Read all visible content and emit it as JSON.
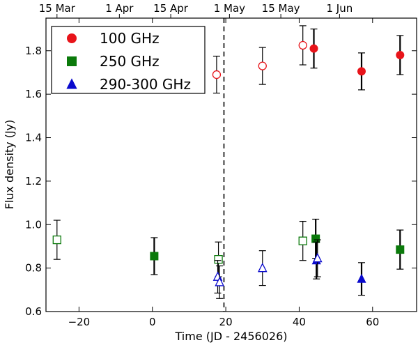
{
  "chart_data": {
    "type": "scatter",
    "xlabel": "Time (JD - 2456026)",
    "ylabel": "Flux density (Jy)",
    "xlim": [
      -29,
      72
    ],
    "ylim": [
      0.6,
      1.95
    ],
    "xticks": [
      -20,
      0,
      20,
      40,
      60
    ],
    "xtick_labels": [
      "−20",
      "0",
      "20",
      "40",
      "60"
    ],
    "yticks": [
      0.6,
      0.8,
      1.0,
      1.2,
      1.4,
      1.6,
      1.8
    ],
    "ytick_labels": [
      "0.6",
      "0.8",
      "1.0",
      "1.2",
      "1.4",
      "1.6",
      "1.8"
    ],
    "top_axis": {
      "labels": [
        "15 Mar",
        "1 Apr",
        "15 Apr",
        "1 May",
        "15 May",
        "1 Jun"
      ],
      "positions": [
        -26,
        -9,
        5,
        21,
        35,
        51
      ]
    },
    "vline": {
      "x": 19.5,
      "style": "dashed"
    },
    "legend": {
      "position": "top-left"
    },
    "series": [
      {
        "name": "100 GHz",
        "marker": "circle",
        "color": "#e8141a",
        "points": [
          {
            "x": 17.5,
            "y": 1.69,
            "err": 0.085,
            "filled": false
          },
          {
            "x": 30,
            "y": 1.73,
            "err": 0.085,
            "filled": false
          },
          {
            "x": 41,
            "y": 1.825,
            "err": 0.09,
            "filled": false
          },
          {
            "x": 44,
            "y": 1.81,
            "err": 0.09,
            "filled": true
          },
          {
            "x": 57,
            "y": 1.705,
            "err": 0.085,
            "filled": true
          },
          {
            "x": 67.5,
            "y": 1.78,
            "err": 0.09,
            "filled": true
          }
        ]
      },
      {
        "name": "250 GHz",
        "marker": "square",
        "color": "#0b7a0b",
        "points": [
          {
            "x": -26,
            "y": 0.93,
            "err": 0.09,
            "filled": false
          },
          {
            "x": 0.5,
            "y": 0.855,
            "err": 0.085,
            "filled": true
          },
          {
            "x": 18,
            "y": 0.84,
            "err": 0.08,
            "filled": false
          },
          {
            "x": 41,
            "y": 0.925,
            "err": 0.09,
            "filled": false
          },
          {
            "x": 44.5,
            "y": 0.935,
            "err": 0.09,
            "filled": true
          },
          {
            "x": 67.5,
            "y": 0.885,
            "err": 0.09,
            "filled": true
          }
        ]
      },
      {
        "name": "290-300 GHz",
        "marker": "triangle",
        "color": "#0a0acd",
        "points": [
          {
            "x": 17.8,
            "y": 0.76,
            "err": 0.075,
            "filled": false
          },
          {
            "x": 18.3,
            "y": 0.735,
            "err": 0.075,
            "filled": false
          },
          {
            "x": 30,
            "y": 0.8,
            "err": 0.08,
            "filled": false
          },
          {
            "x": 44.7,
            "y": 0.835,
            "err": 0.085,
            "filled": true
          },
          {
            "x": 45,
            "y": 0.845,
            "err": 0.085,
            "filled": false
          },
          {
            "x": 57,
            "y": 0.75,
            "err": 0.075,
            "filled": true
          }
        ]
      }
    ]
  }
}
